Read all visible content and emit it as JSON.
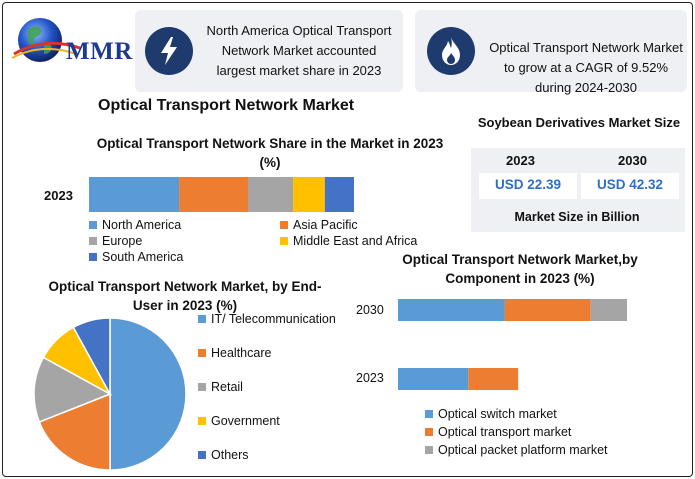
{
  "brand": {
    "logo_text": "MMR"
  },
  "info_boxes": [
    {
      "icon": "lightning-bolt-icon",
      "text": "North America Optical Transport Network Market accounted largest market share in 2023"
    },
    {
      "icon": "flame-icon",
      "text": "Optical Transport Network Market to grow at a CAGR of 9.52% during 2024-2030"
    }
  ],
  "main_title": "Optical Transport Network Market",
  "market_size": {
    "title": "Soybean Derivatives Market Size",
    "years": [
      "2023",
      "2030"
    ],
    "values": [
      "USD 22.39",
      "USD 42.32"
    ],
    "footer": "Market Size in Billion"
  },
  "colors": {
    "blue": "#5b9bd5",
    "orange": "#ed7d31",
    "gray": "#a5a5a5",
    "yellow": "#ffc000",
    "darkblue": "#4472c4",
    "value_text": "#2f6fc4"
  },
  "chart_data": [
    {
      "type": "bar",
      "orientation": "horizontal",
      "stacked": true,
      "title": "Optical Transport Network Share in the Market in 2023 (%)",
      "categories": [
        "2023"
      ],
      "series": [
        {
          "name": "North America",
          "values": [
            34
          ],
          "color": "#5b9bd5"
        },
        {
          "name": "Asia Pacific",
          "values": [
            26
          ],
          "color": "#ed7d31"
        },
        {
          "name": "Europe",
          "values": [
            17
          ],
          "color": "#a5a5a5"
        },
        {
          "name": "Middle East and Africa",
          "values": [
            12
          ],
          "color": "#ffc000"
        },
        {
          "name": "South America",
          "values": [
            11
          ],
          "color": "#4472c4"
        }
      ],
      "legend": "bottom"
    },
    {
      "type": "pie",
      "title": "Optical Transport Network Market, by End-User in 2023 (%)",
      "labels": [
        "IT/ Telecommunication",
        "Healthcare",
        "Retail",
        "Government",
        "Others"
      ],
      "values": [
        50,
        19,
        14,
        9,
        8
      ],
      "colors": [
        "#5b9bd5",
        "#ed7d31",
        "#a5a5a5",
        "#ffc000",
        "#4472c4"
      ],
      "legend": "right"
    },
    {
      "type": "bar",
      "orientation": "horizontal",
      "stacked": true,
      "title": "Optical Transport Network Market,by Component in 2023 (%)",
      "categories": [
        "2030",
        "2023"
      ],
      "series": [
        {
          "name": "Optical switch market",
          "values": [
            47,
            31
          ],
          "color": "#5b9bd5"
        },
        {
          "name": "Optical transport market",
          "values": [
            38,
            22
          ],
          "color": "#ed7d31"
        },
        {
          "name": "Optical packet platform market",
          "values": [
            16,
            0
          ],
          "color": "#a5a5a5"
        }
      ],
      "legend": "bottom"
    }
  ]
}
